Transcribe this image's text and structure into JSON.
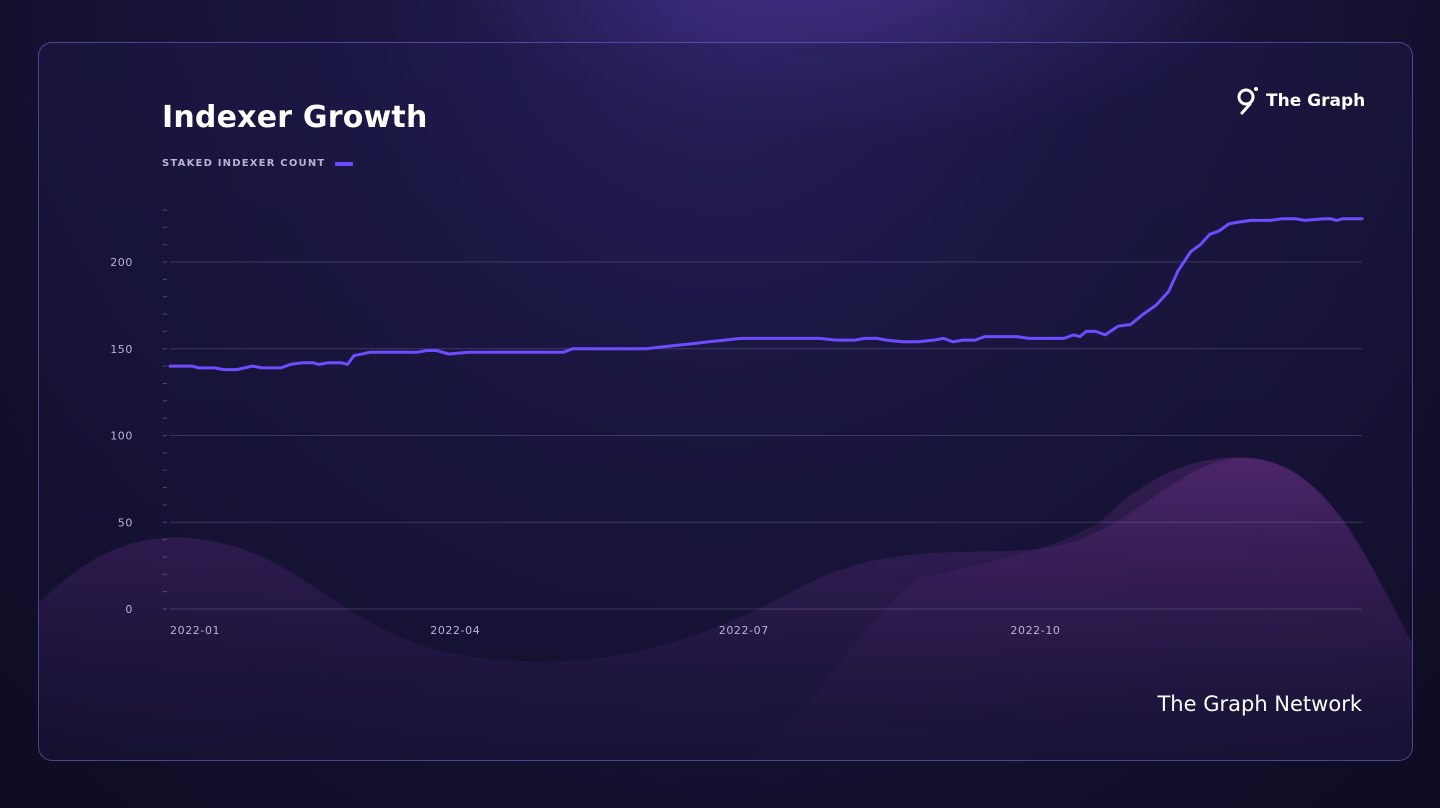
{
  "brand": {
    "logo_text": "The Graph",
    "footer_text": "The Graph Network",
    "accent": "#6f4cff"
  },
  "chart_data": {
    "type": "line",
    "title": "Indexer Growth",
    "legend": "STAKED INDEXER COUNT",
    "xlabel": "",
    "ylabel": "",
    "ylim": [
      0,
      230
    ],
    "yticks": [
      0,
      50,
      100,
      150,
      200
    ],
    "xticks": [
      "2022-01",
      "2022-04",
      "2022-07",
      "2022-10"
    ],
    "grid": true,
    "series": [
      {
        "name": "STAKED INDEXER COUNT",
        "color": "#6f4cff",
        "points": [
          [
            "2022-01-01",
            140
          ],
          [
            "2022-01-08",
            140
          ],
          [
            "2022-01-10",
            139
          ],
          [
            "2022-01-15",
            139
          ],
          [
            "2022-01-18",
            138
          ],
          [
            "2022-01-22",
            138
          ],
          [
            "2022-01-27",
            140
          ],
          [
            "2022-01-30",
            139
          ],
          [
            "2022-02-05",
            139
          ],
          [
            "2022-02-08",
            141
          ],
          [
            "2022-02-12",
            142
          ],
          [
            "2022-02-15",
            142
          ],
          [
            "2022-02-17",
            141
          ],
          [
            "2022-02-20",
            142
          ],
          [
            "2022-02-24",
            142
          ],
          [
            "2022-02-26",
            141
          ],
          [
            "2022-02-28",
            146
          ],
          [
            "2022-03-05",
            148
          ],
          [
            "2022-03-15",
            148
          ],
          [
            "2022-03-20",
            148
          ],
          [
            "2022-03-23",
            149
          ],
          [
            "2022-03-26",
            149
          ],
          [
            "2022-03-30",
            147
          ],
          [
            "2022-04-05",
            148
          ],
          [
            "2022-04-20",
            148
          ],
          [
            "2022-05-01",
            148
          ],
          [
            "2022-05-05",
            148
          ],
          [
            "2022-05-08",
            150
          ],
          [
            "2022-05-20",
            150
          ],
          [
            "2022-05-31",
            150
          ],
          [
            "2022-06-05",
            151
          ],
          [
            "2022-06-10",
            152
          ],
          [
            "2022-06-15",
            153
          ],
          [
            "2022-06-20",
            154
          ],
          [
            "2022-06-25",
            155
          ],
          [
            "2022-06-30",
            156
          ],
          [
            "2022-07-10",
            156
          ],
          [
            "2022-07-25",
            156
          ],
          [
            "2022-07-30",
            155
          ],
          [
            "2022-08-05",
            155
          ],
          [
            "2022-08-08",
            156
          ],
          [
            "2022-08-12",
            156
          ],
          [
            "2022-08-15",
            155
          ],
          [
            "2022-08-20",
            154
          ],
          [
            "2022-08-25",
            154
          ],
          [
            "2022-08-30",
            155
          ],
          [
            "2022-09-02",
            156
          ],
          [
            "2022-09-05",
            154
          ],
          [
            "2022-09-08",
            155
          ],
          [
            "2022-09-12",
            155
          ],
          [
            "2022-09-15",
            157
          ],
          [
            "2022-09-20",
            157
          ],
          [
            "2022-09-25",
            157
          ],
          [
            "2022-09-29",
            156
          ],
          [
            "2022-10-05",
            156
          ],
          [
            "2022-10-10",
            156
          ],
          [
            "2022-10-13",
            158
          ],
          [
            "2022-10-15",
            157
          ],
          [
            "2022-10-17",
            160
          ],
          [
            "2022-10-20",
            160
          ],
          [
            "2022-10-23",
            158
          ],
          [
            "2022-10-27",
            163
          ],
          [
            "2022-10-31",
            164
          ],
          [
            "2022-11-04",
            170
          ],
          [
            "2022-11-08",
            175
          ],
          [
            "2022-11-12",
            183
          ],
          [
            "2022-11-15",
            195
          ],
          [
            "2022-11-19",
            206
          ],
          [
            "2022-11-22",
            210
          ],
          [
            "2022-11-25",
            216
          ],
          [
            "2022-11-28",
            218
          ],
          [
            "2022-12-01",
            222
          ],
          [
            "2022-12-04",
            223
          ],
          [
            "2022-12-08",
            224
          ],
          [
            "2022-12-14",
            224
          ],
          [
            "2022-12-18",
            225
          ],
          [
            "2022-12-22",
            225
          ],
          [
            "2022-12-25",
            224
          ],
          [
            "2022-12-31",
            225
          ],
          [
            "2023-01-02",
            225
          ],
          [
            "2023-01-04",
            224
          ],
          [
            "2023-01-06",
            225
          ],
          [
            "2023-01-12",
            225
          ]
        ]
      }
    ]
  }
}
